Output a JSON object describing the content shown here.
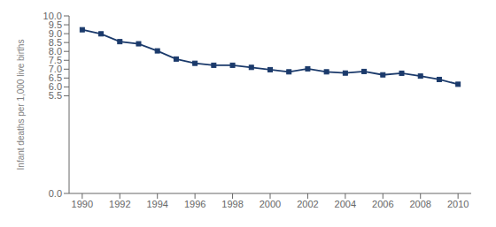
{
  "chart_data": {
    "type": "line",
    "ylabel": "Infant deaths per 1,000 live births",
    "x": [
      1990,
      1991,
      1992,
      1993,
      1994,
      1995,
      1996,
      1997,
      1998,
      1999,
      2000,
      2001,
      2002,
      2003,
      2004,
      2005,
      2006,
      2007,
      2008,
      2009,
      2010
    ],
    "values": [
      9.22,
      8.99,
      8.55,
      8.43,
      8.03,
      7.57,
      7.33,
      7.22,
      7.22,
      7.1,
      6.97,
      6.85,
      7.02,
      6.85,
      6.78,
      6.87,
      6.68,
      6.77,
      6.61,
      6.42,
      6.15
    ],
    "color": "#1b3a6b",
    "marker": "square",
    "xlim": [
      1989.3,
      2010.7
    ],
    "xticks": [
      1990,
      1992,
      1994,
      1996,
      1998,
      2000,
      2002,
      2004,
      2006,
      2008,
      2010
    ],
    "ylim": [
      0.0,
      10.0
    ],
    "yticks": [
      {
        "value": 0.0,
        "label": "0.0"
      },
      5.5,
      {
        "value": 6.0,
        "label": "6.0"
      },
      6.5,
      {
        "value": 7.0,
        "label": "7.0"
      },
      7.5,
      {
        "value": 8.0,
        "label": "8.0"
      },
      8.5,
      {
        "value": 9.0,
        "label": "9.0"
      },
      9.5,
      {
        "value": 10.0,
        "label": "10.0"
      }
    ],
    "grid": false
  }
}
